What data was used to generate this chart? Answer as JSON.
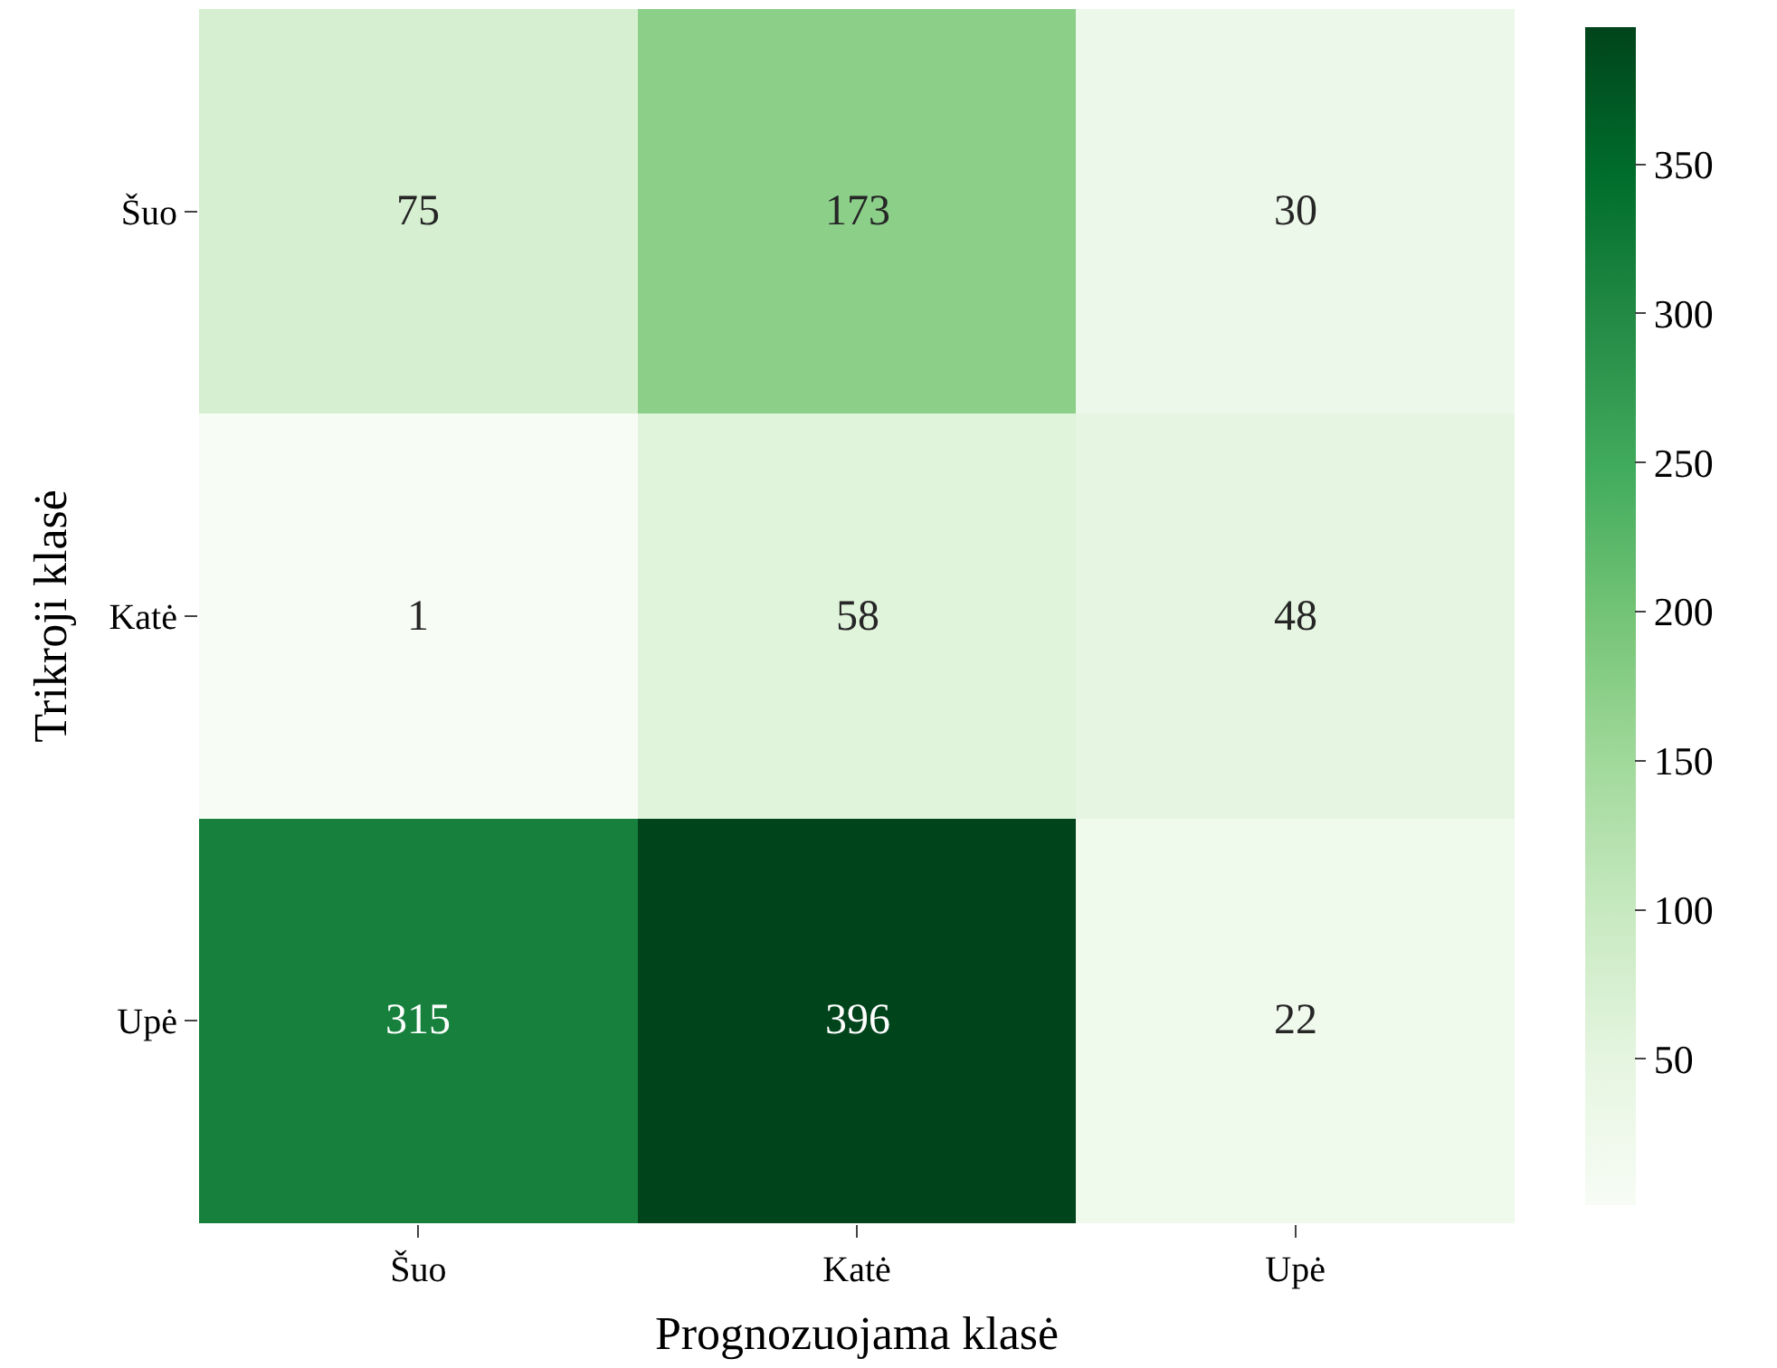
{
  "chart_data": {
    "type": "heatmap",
    "xlabel": "Prognozuojama klasė",
    "ylabel": "Trikroji klasė",
    "categories": [
      "Šuo",
      "Katė",
      "Upė"
    ],
    "y_categories": [
      "Šuo",
      "Katė",
      "Upė"
    ],
    "cells": [
      [
        75,
        173,
        30
      ],
      [
        1,
        58,
        48
      ],
      [
        315,
        396,
        22
      ]
    ],
    "clim": [
      1,
      396
    ],
    "cticks": [
      50,
      100,
      150,
      200,
      250,
      300,
      350
    ],
    "data_labels": true
  }
}
